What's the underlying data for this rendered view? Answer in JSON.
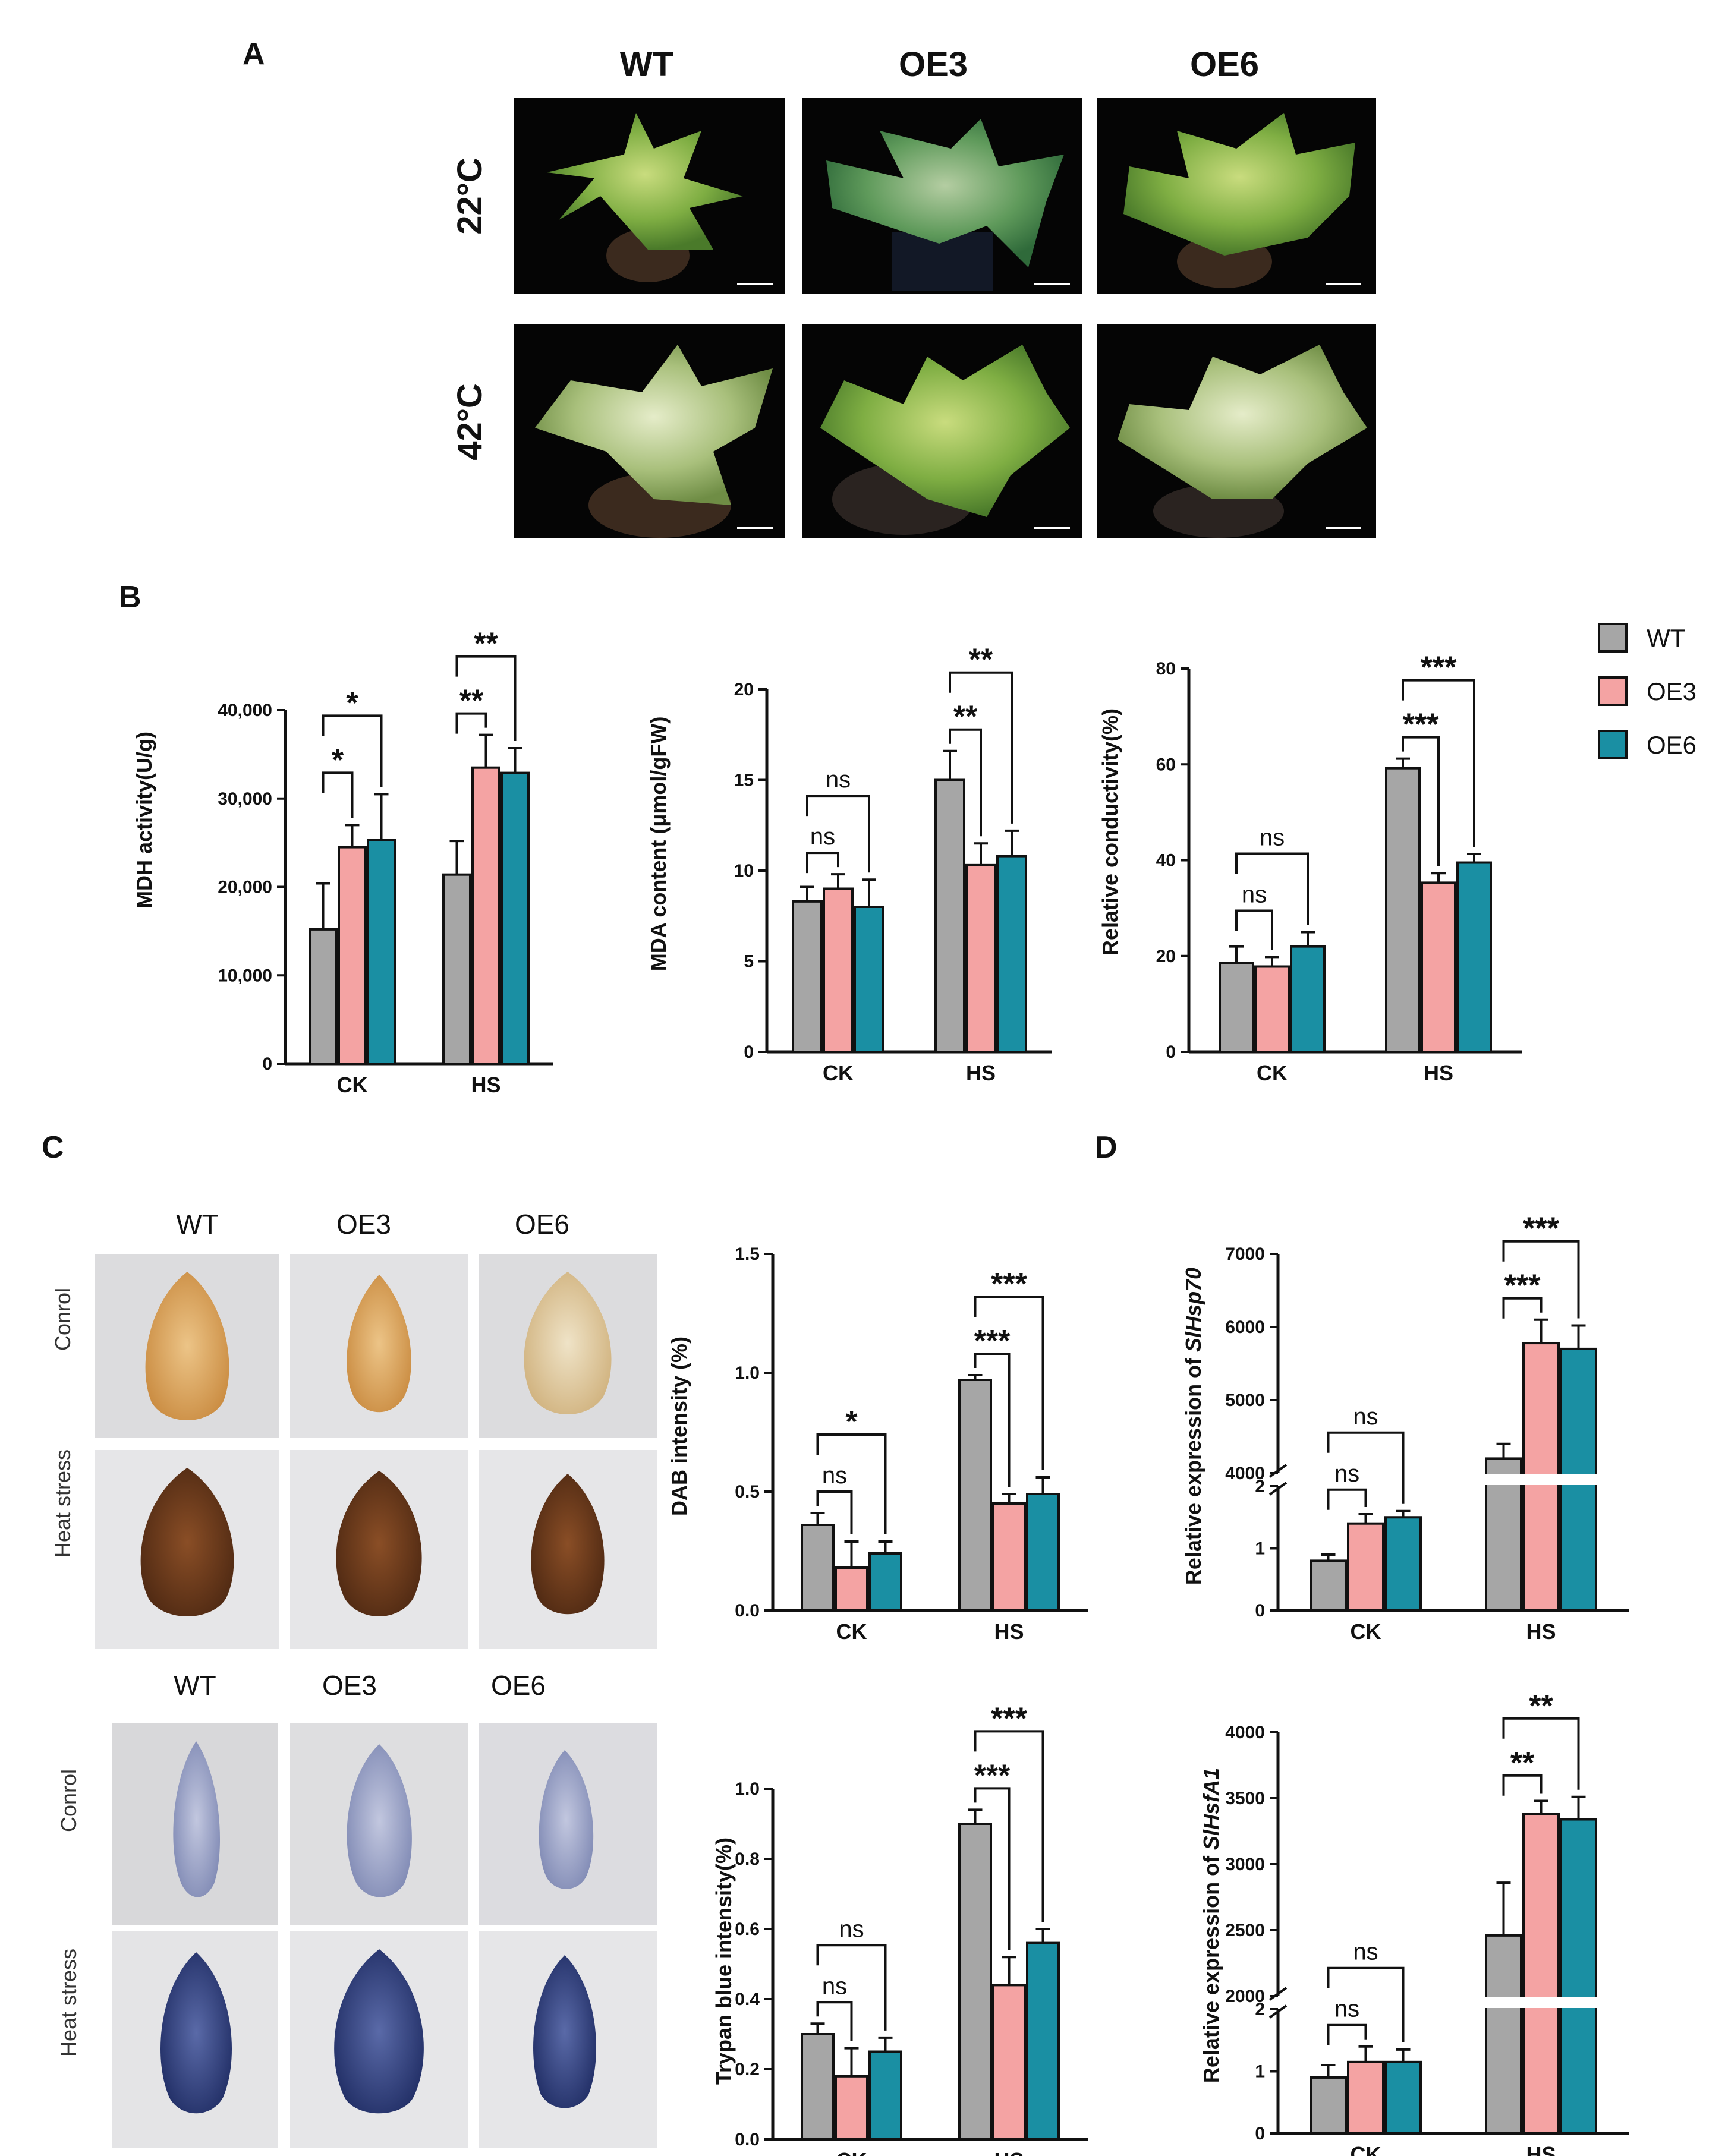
{
  "panels": {
    "A": "A",
    "B": "B",
    "C": "C",
    "D": "D"
  },
  "photo_cols": [
    "WT",
    "OE3",
    "OE6"
  ],
  "photo_rows_A": [
    "22°C",
    "42°C"
  ],
  "leaf_rows_C": [
    "Conrol",
    "Heat stress"
  ],
  "legend": [
    {
      "label": "WT",
      "color": "#a6a6a6"
    },
    {
      "label": "OE3",
      "color": "#f4a3a3"
    },
    {
      "label": "OE6",
      "color": "#1a8fa3"
    }
  ],
  "colors": {
    "WT": "#a6a6a6",
    "OE3": "#f4a3a3",
    "OE6": "#1a8fa3",
    "plant_bg": "#050505",
    "leaf_bg": "#dcdcde",
    "dab_light": "#d9a45a",
    "dab_dark": "#6b3a1e",
    "trypan_light": "#9aa3c4",
    "trypan_dark": "#2c3a78"
  },
  "chart_data": [
    {
      "id": "mdh",
      "type": "bar",
      "categories": [
        "CK",
        "HS"
      ],
      "ylabel": "MDH activity(U/g)",
      "ylim": [
        0,
        40000
      ],
      "yticks": [
        "0",
        "10,000",
        "20,000",
        "30,000",
        "40,000"
      ],
      "series": [
        {
          "name": "WT",
          "values": [
            15200,
            21400
          ],
          "err": [
            5200,
            3800
          ]
        },
        {
          "name": "OE3",
          "values": [
            24500,
            33500
          ],
          "err": [
            2500,
            3700
          ]
        },
        {
          "name": "OE6",
          "values": [
            25300,
            32900
          ],
          "err": [
            5200,
            2800
          ]
        }
      ],
      "sig": [
        {
          "cat": 0,
          "to": 1,
          "label": "*"
        },
        {
          "cat": 0,
          "to": 2,
          "label": "*"
        },
        {
          "cat": 1,
          "to": 1,
          "label": "**"
        },
        {
          "cat": 1,
          "to": 2,
          "label": "**"
        }
      ]
    },
    {
      "id": "mda",
      "type": "bar",
      "categories": [
        "CK",
        "HS"
      ],
      "ylabel": "MDA content (μmol/gFW)",
      "ylim": [
        0,
        20
      ],
      "yticks": [
        "0",
        "5",
        "10",
        "15",
        "20"
      ],
      "series": [
        {
          "name": "WT",
          "values": [
            8.3,
            15.0
          ],
          "err": [
            0.8,
            1.6
          ]
        },
        {
          "name": "OE3",
          "values": [
            9.0,
            10.3
          ],
          "err": [
            0.8,
            1.2
          ]
        },
        {
          "name": "OE6",
          "values": [
            8.0,
            10.8
          ],
          "err": [
            1.5,
            1.4
          ]
        }
      ],
      "sig": [
        {
          "cat": 0,
          "to": 1,
          "label": "ns"
        },
        {
          "cat": 0,
          "to": 2,
          "label": "ns"
        },
        {
          "cat": 1,
          "to": 1,
          "label": "**"
        },
        {
          "cat": 1,
          "to": 2,
          "label": "**"
        }
      ]
    },
    {
      "id": "cond",
      "type": "bar",
      "categories": [
        "CK",
        "HS"
      ],
      "ylabel": "Relative conductivity(%)",
      "ylim": [
        0,
        80
      ],
      "yticks": [
        "0",
        "20",
        "40",
        "60",
        "80"
      ],
      "series": [
        {
          "name": "WT",
          "values": [
            18.5,
            59.2
          ],
          "err": [
            3.5,
            2.0
          ]
        },
        {
          "name": "OE3",
          "values": [
            17.8,
            35.3
          ],
          "err": [
            2.0,
            2.0
          ]
        },
        {
          "name": "OE6",
          "values": [
            22.0,
            39.5
          ],
          "err": [
            3.0,
            1.8
          ]
        }
      ],
      "sig": [
        {
          "cat": 0,
          "to": 1,
          "label": "ns"
        },
        {
          "cat": 0,
          "to": 2,
          "label": "ns"
        },
        {
          "cat": 1,
          "to": 1,
          "label": "***"
        },
        {
          "cat": 1,
          "to": 2,
          "label": "***"
        }
      ]
    },
    {
      "id": "dab",
      "type": "bar",
      "categories": [
        "CK",
        "HS"
      ],
      "ylabel": "DAB intensity (%)",
      "ylim": [
        0,
        1.5
      ],
      "yticks": [
        "0.0",
        "0.5",
        "1.0",
        "1.5"
      ],
      "series": [
        {
          "name": "WT",
          "values": [
            0.36,
            0.97
          ],
          "err": [
            0.05,
            0.02
          ]
        },
        {
          "name": "OE3",
          "values": [
            0.18,
            0.45
          ],
          "err": [
            0.11,
            0.04
          ]
        },
        {
          "name": "OE6",
          "values": [
            0.24,
            0.49
          ],
          "err": [
            0.05,
            0.07
          ]
        }
      ],
      "sig": [
        {
          "cat": 0,
          "to": 1,
          "label": "ns"
        },
        {
          "cat": 0,
          "to": 2,
          "label": "*"
        },
        {
          "cat": 1,
          "to": 1,
          "label": "***"
        },
        {
          "cat": 1,
          "to": 2,
          "label": "***"
        }
      ]
    },
    {
      "id": "trypan",
      "type": "bar",
      "categories": [
        "CK",
        "HS"
      ],
      "ylabel": "Trypan blue intensity(%)",
      "ylim": [
        0,
        1.0
      ],
      "yticks": [
        "0.0",
        "0.2",
        "0.4",
        "0.6",
        "0.8",
        "1.0"
      ],
      "series": [
        {
          "name": "WT",
          "values": [
            0.3,
            0.9
          ],
          "err": [
            0.03,
            0.04
          ]
        },
        {
          "name": "OE3",
          "values": [
            0.18,
            0.44
          ],
          "err": [
            0.08,
            0.08
          ]
        },
        {
          "name": "OE6",
          "values": [
            0.25,
            0.56
          ],
          "err": [
            0.04,
            0.04
          ]
        }
      ],
      "sig": [
        {
          "cat": 0,
          "to": 1,
          "label": "ns"
        },
        {
          "cat": 0,
          "to": 2,
          "label": "ns"
        },
        {
          "cat": 1,
          "to": 1,
          "label": "***"
        },
        {
          "cat": 1,
          "to": 2,
          "label": "***"
        }
      ]
    },
    {
      "id": "hsp70",
      "type": "bar",
      "categories": [
        "CK",
        "HS"
      ],
      "ylabel": "Relative expression of SlHsp70",
      "broken_axis": true,
      "yticks_low": [
        "0",
        "1",
        "2"
      ],
      "yticks_high": [
        "4000",
        "5000",
        "6000",
        "7000"
      ],
      "series": [
        {
          "name": "WT",
          "values": [
            0.8,
            4200
          ],
          "err": [
            0.1,
            200
          ]
        },
        {
          "name": "OE3",
          "values": [
            1.4,
            5780
          ],
          "err": [
            0.15,
            320
          ]
        },
        {
          "name": "OE6",
          "values": [
            1.5,
            5700
          ],
          "err": [
            0.1,
            320
          ]
        }
      ],
      "sig": [
        {
          "cat": 0,
          "to": 1,
          "label": "ns"
        },
        {
          "cat": 0,
          "to": 2,
          "label": "ns"
        },
        {
          "cat": 1,
          "to": 1,
          "label": "***"
        },
        {
          "cat": 1,
          "to": 2,
          "label": "***"
        }
      ]
    },
    {
      "id": "hsfa1",
      "type": "bar",
      "categories": [
        "CK",
        "HS"
      ],
      "ylabel": "Relative expression of SlHsfA1",
      "broken_axis": true,
      "yticks_low": [
        "0",
        "1",
        "2"
      ],
      "yticks_high": [
        "2000",
        "2500",
        "3000",
        "3500",
        "4000"
      ],
      "series": [
        {
          "name": "WT",
          "values": [
            0.9,
            2460
          ],
          "err": [
            0.2,
            400
          ]
        },
        {
          "name": "OE3",
          "values": [
            1.15,
            3380
          ],
          "err": [
            0.25,
            100
          ]
        },
        {
          "name": "OE6",
          "values": [
            1.15,
            3340
          ],
          "err": [
            0.2,
            170
          ]
        }
      ],
      "sig": [
        {
          "cat": 0,
          "to": 1,
          "label": "ns"
        },
        {
          "cat": 0,
          "to": 2,
          "label": "ns"
        },
        {
          "cat": 1,
          "to": 1,
          "label": "**"
        },
        {
          "cat": 1,
          "to": 2,
          "label": "**"
        }
      ]
    }
  ]
}
